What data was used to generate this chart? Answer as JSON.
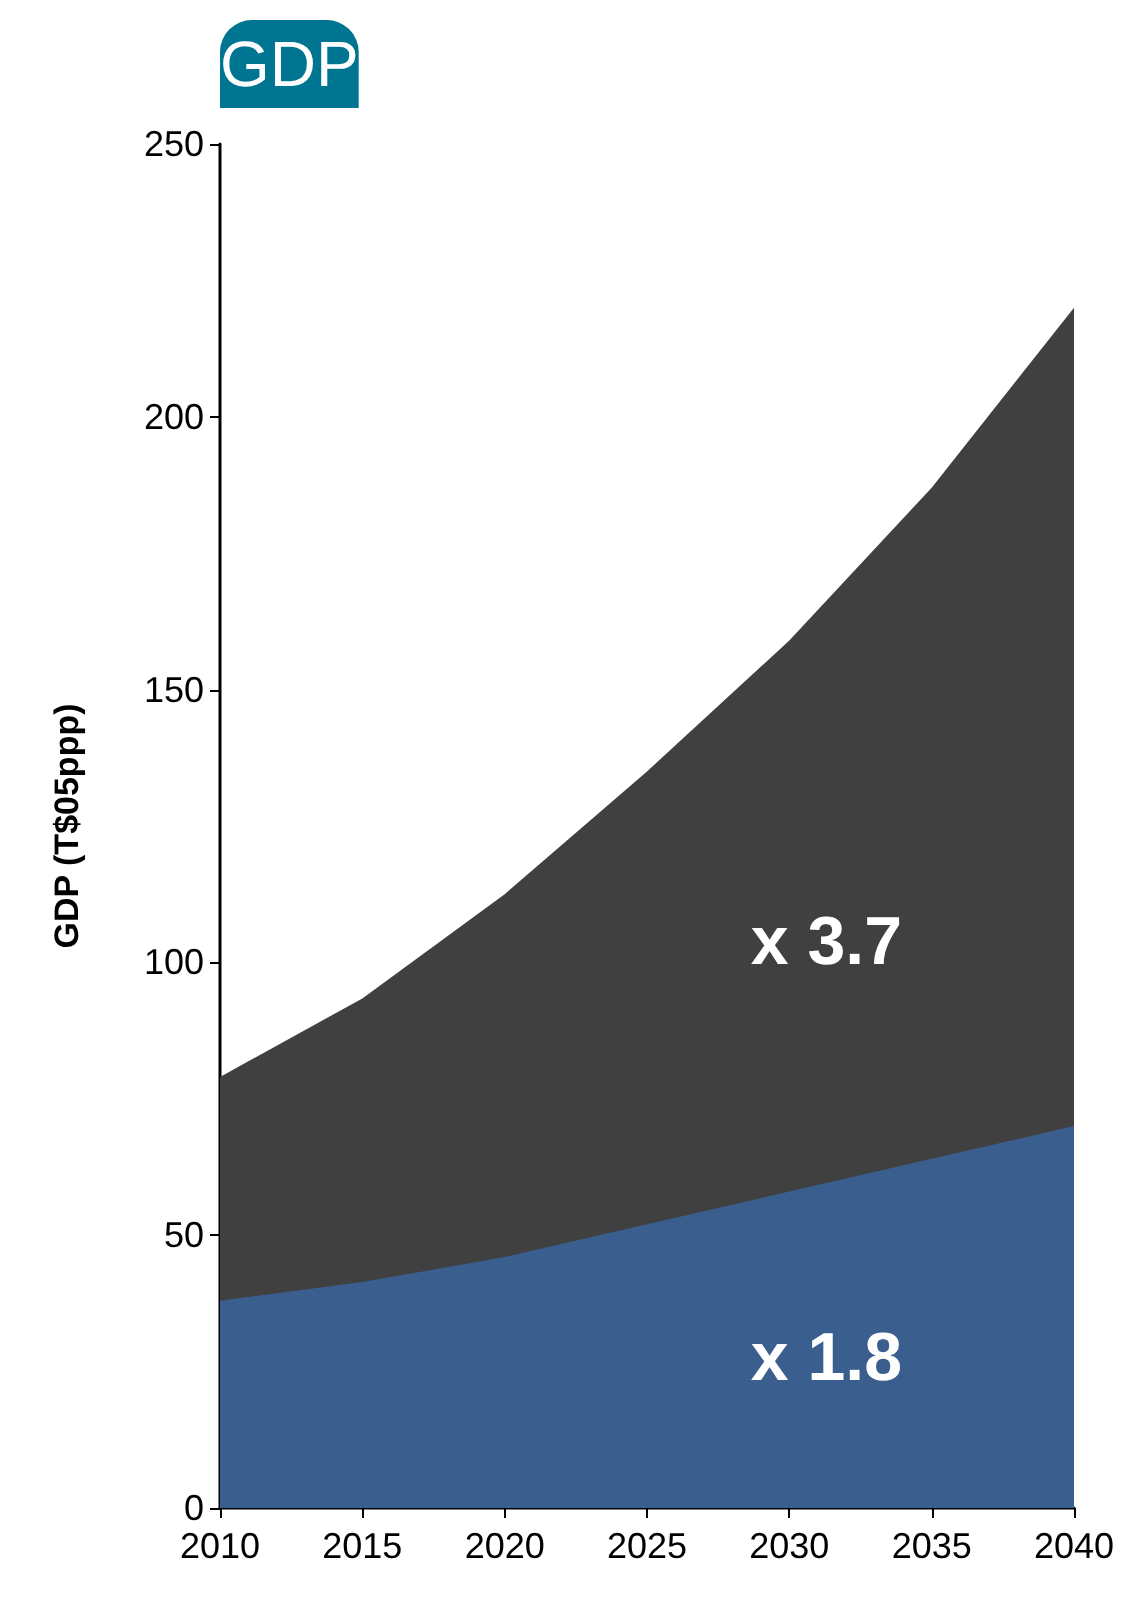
{
  "chart_data": {
    "type": "area",
    "title": "GDP",
    "ylabel": "GDP (T$05ppp)",
    "stacked": true,
    "x": [
      2010,
      2015,
      2020,
      2025,
      2030,
      2035,
      2040
    ],
    "series": [
      {
        "color": "#3a5f8f",
        "values": [
          38,
          41.4,
          46,
          52,
          58,
          64,
          70
        ]
      },
      {
        "color": "#404040",
        "values": [
          41,
          52,
          66.5,
          83,
          101,
          123,
          150
        ]
      }
    ],
    "xlim": [
      2010,
      2040
    ],
    "xticks": [
      2010,
      2015,
      2020,
      2025,
      2030,
      2035,
      2040
    ],
    "ylim": [
      0,
      250
    ],
    "yticks": [
      0,
      50,
      100,
      150,
      200,
      250
    ],
    "grid": false,
    "annotations": [
      "x 3.7",
      "x 1.8"
    ]
  }
}
